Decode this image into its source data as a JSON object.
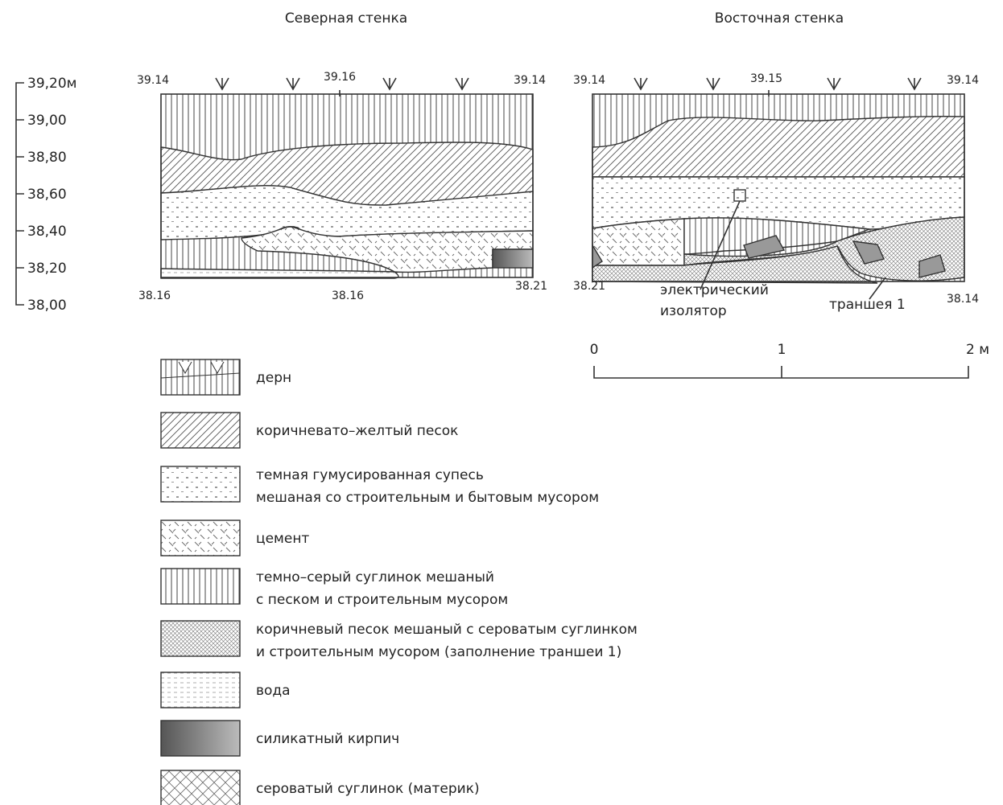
{
  "sections": [
    {
      "title": "Северная стенка",
      "top_labels": [
        "39.14",
        "39.16",
        "39.14"
      ],
      "bottom_labels": [
        "38.16",
        "38.16",
        "38.21"
      ]
    },
    {
      "title": "Восточная стенка",
      "top_labels": [
        "39.14",
        "39.15",
        "39.14"
      ],
      "bottom_labels": [
        "38.21",
        "38.14"
      ]
    }
  ],
  "elevation_scale": [
    "39,20м",
    "39,00",
    "38,80",
    "38,60",
    "38,40",
    "38,20",
    "38,00"
  ],
  "annotations": {
    "insulator": [
      "электрический",
      "изолятор"
    ],
    "trench": "траншея 1"
  },
  "scale_bar": [
    "0",
    "1",
    "2 м"
  ],
  "legend": [
    {
      "lines": [
        "дерн"
      ]
    },
    {
      "lines": [
        "коричневато–желтый песок"
      ]
    },
    {
      "lines": [
        "темная гумусированная супесь",
        "мешаная со строительным и бытовым мусором"
      ]
    },
    {
      "lines": [
        "цемент"
      ]
    },
    {
      "lines": [
        "темно–серый суглинок мешаный",
        "с песком и строительным мусором"
      ]
    },
    {
      "lines": [
        "коричневый песок мешаный с сероватым суглинком",
        "и строительным мусором (заполнение траншеи 1)"
      ]
    },
    {
      "lines": [
        "вода"
      ]
    },
    {
      "lines": [
        "силикатный кирпич"
      ]
    },
    {
      "lines": [
        "сероватый суглинок (материк)"
      ]
    }
  ]
}
